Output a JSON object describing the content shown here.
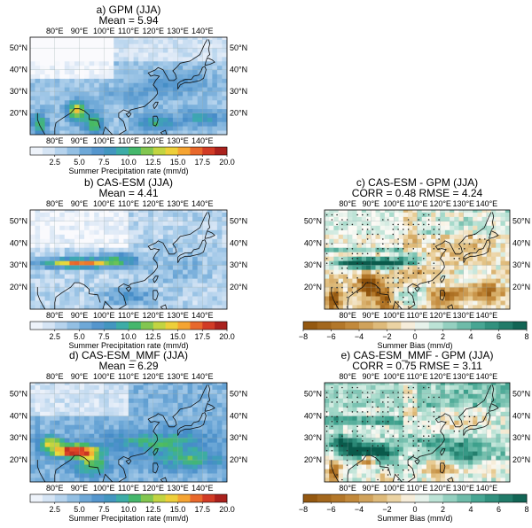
{
  "figure": {
    "lon_ticks": [
      "80°E",
      "90°E",
      "100°E",
      "110°E",
      "120°E",
      "130°E",
      "140°E"
    ],
    "lat_ticks": [
      "50°N",
      "40°N",
      "30°N",
      "20°N"
    ]
  },
  "colorbars": {
    "precip": {
      "ticks": [
        "2.5",
        "5.0",
        "7.5",
        "10.0",
        "12.5",
        "15.0",
        "17.5",
        "20.0"
      ],
      "label": "Summer Precipitation rate (mm/d)"
    },
    "bias": {
      "ticks": [
        "−8",
        "−6",
        "−4",
        "−2",
        "0",
        "2",
        "4",
        "6",
        "8"
      ],
      "label": "Summer Bias (mm/d)"
    }
  },
  "chart_data": [
    {
      "type": "heatmap",
      "id": "a",
      "title": "a) GPM (JJA)",
      "stat": "Mean = 5.94",
      "colorbar": "Summer Precipitation rate (mm/d)",
      "crange": [
        0,
        20
      ],
      "lon_range": [
        "70°E",
        "150°E"
      ],
      "lat_range": [
        "10°N",
        "55°N"
      ],
      "mean": 5.94
    },
    {
      "type": "heatmap",
      "id": "b",
      "title": "b) CAS-ESM (JJA)",
      "stat": "Mean = 4.41",
      "colorbar": "Summer Precipitation rate (mm/d)",
      "crange": [
        0,
        20
      ],
      "lon_range": [
        "70°E",
        "150°E"
      ],
      "lat_range": [
        "10°N",
        "55°N"
      ],
      "mean": 4.41
    },
    {
      "type": "heatmap",
      "id": "c",
      "title": "c) CAS-ESM - GPM (JJA)",
      "stat": "CORR = 0.48    RMSE = 4.24",
      "colorbar": "Summer Bias (mm/d)",
      "crange": [
        -8,
        8
      ],
      "lon_range": [
        "70°E",
        "150°E"
      ],
      "lat_range": [
        "10°N",
        "55°N"
      ],
      "corr": 0.48,
      "rmse": 4.24
    },
    {
      "type": "heatmap",
      "id": "d",
      "title": "d) CAS-ESM_MMF (JJA)",
      "stat": "Mean = 6.29",
      "colorbar": "Summer Precipitation rate (mm/d)",
      "crange": [
        0,
        20
      ],
      "lon_range": [
        "70°E",
        "150°E"
      ],
      "lat_range": [
        "10°N",
        "55°N"
      ],
      "mean": 6.29
    },
    {
      "type": "heatmap",
      "id": "e",
      "title": "e) CAS-ESM_MMF - GPM (JJA)",
      "stat": "CORR = 0.75    RMSE = 3.11",
      "colorbar": "Summer Bias (mm/d)",
      "crange": [
        -8,
        8
      ],
      "lon_range": [
        "70°E",
        "150°E"
      ],
      "lat_range": [
        "10°N",
        "55°N"
      ],
      "corr": 0.75,
      "rmse": 3.11
    }
  ]
}
